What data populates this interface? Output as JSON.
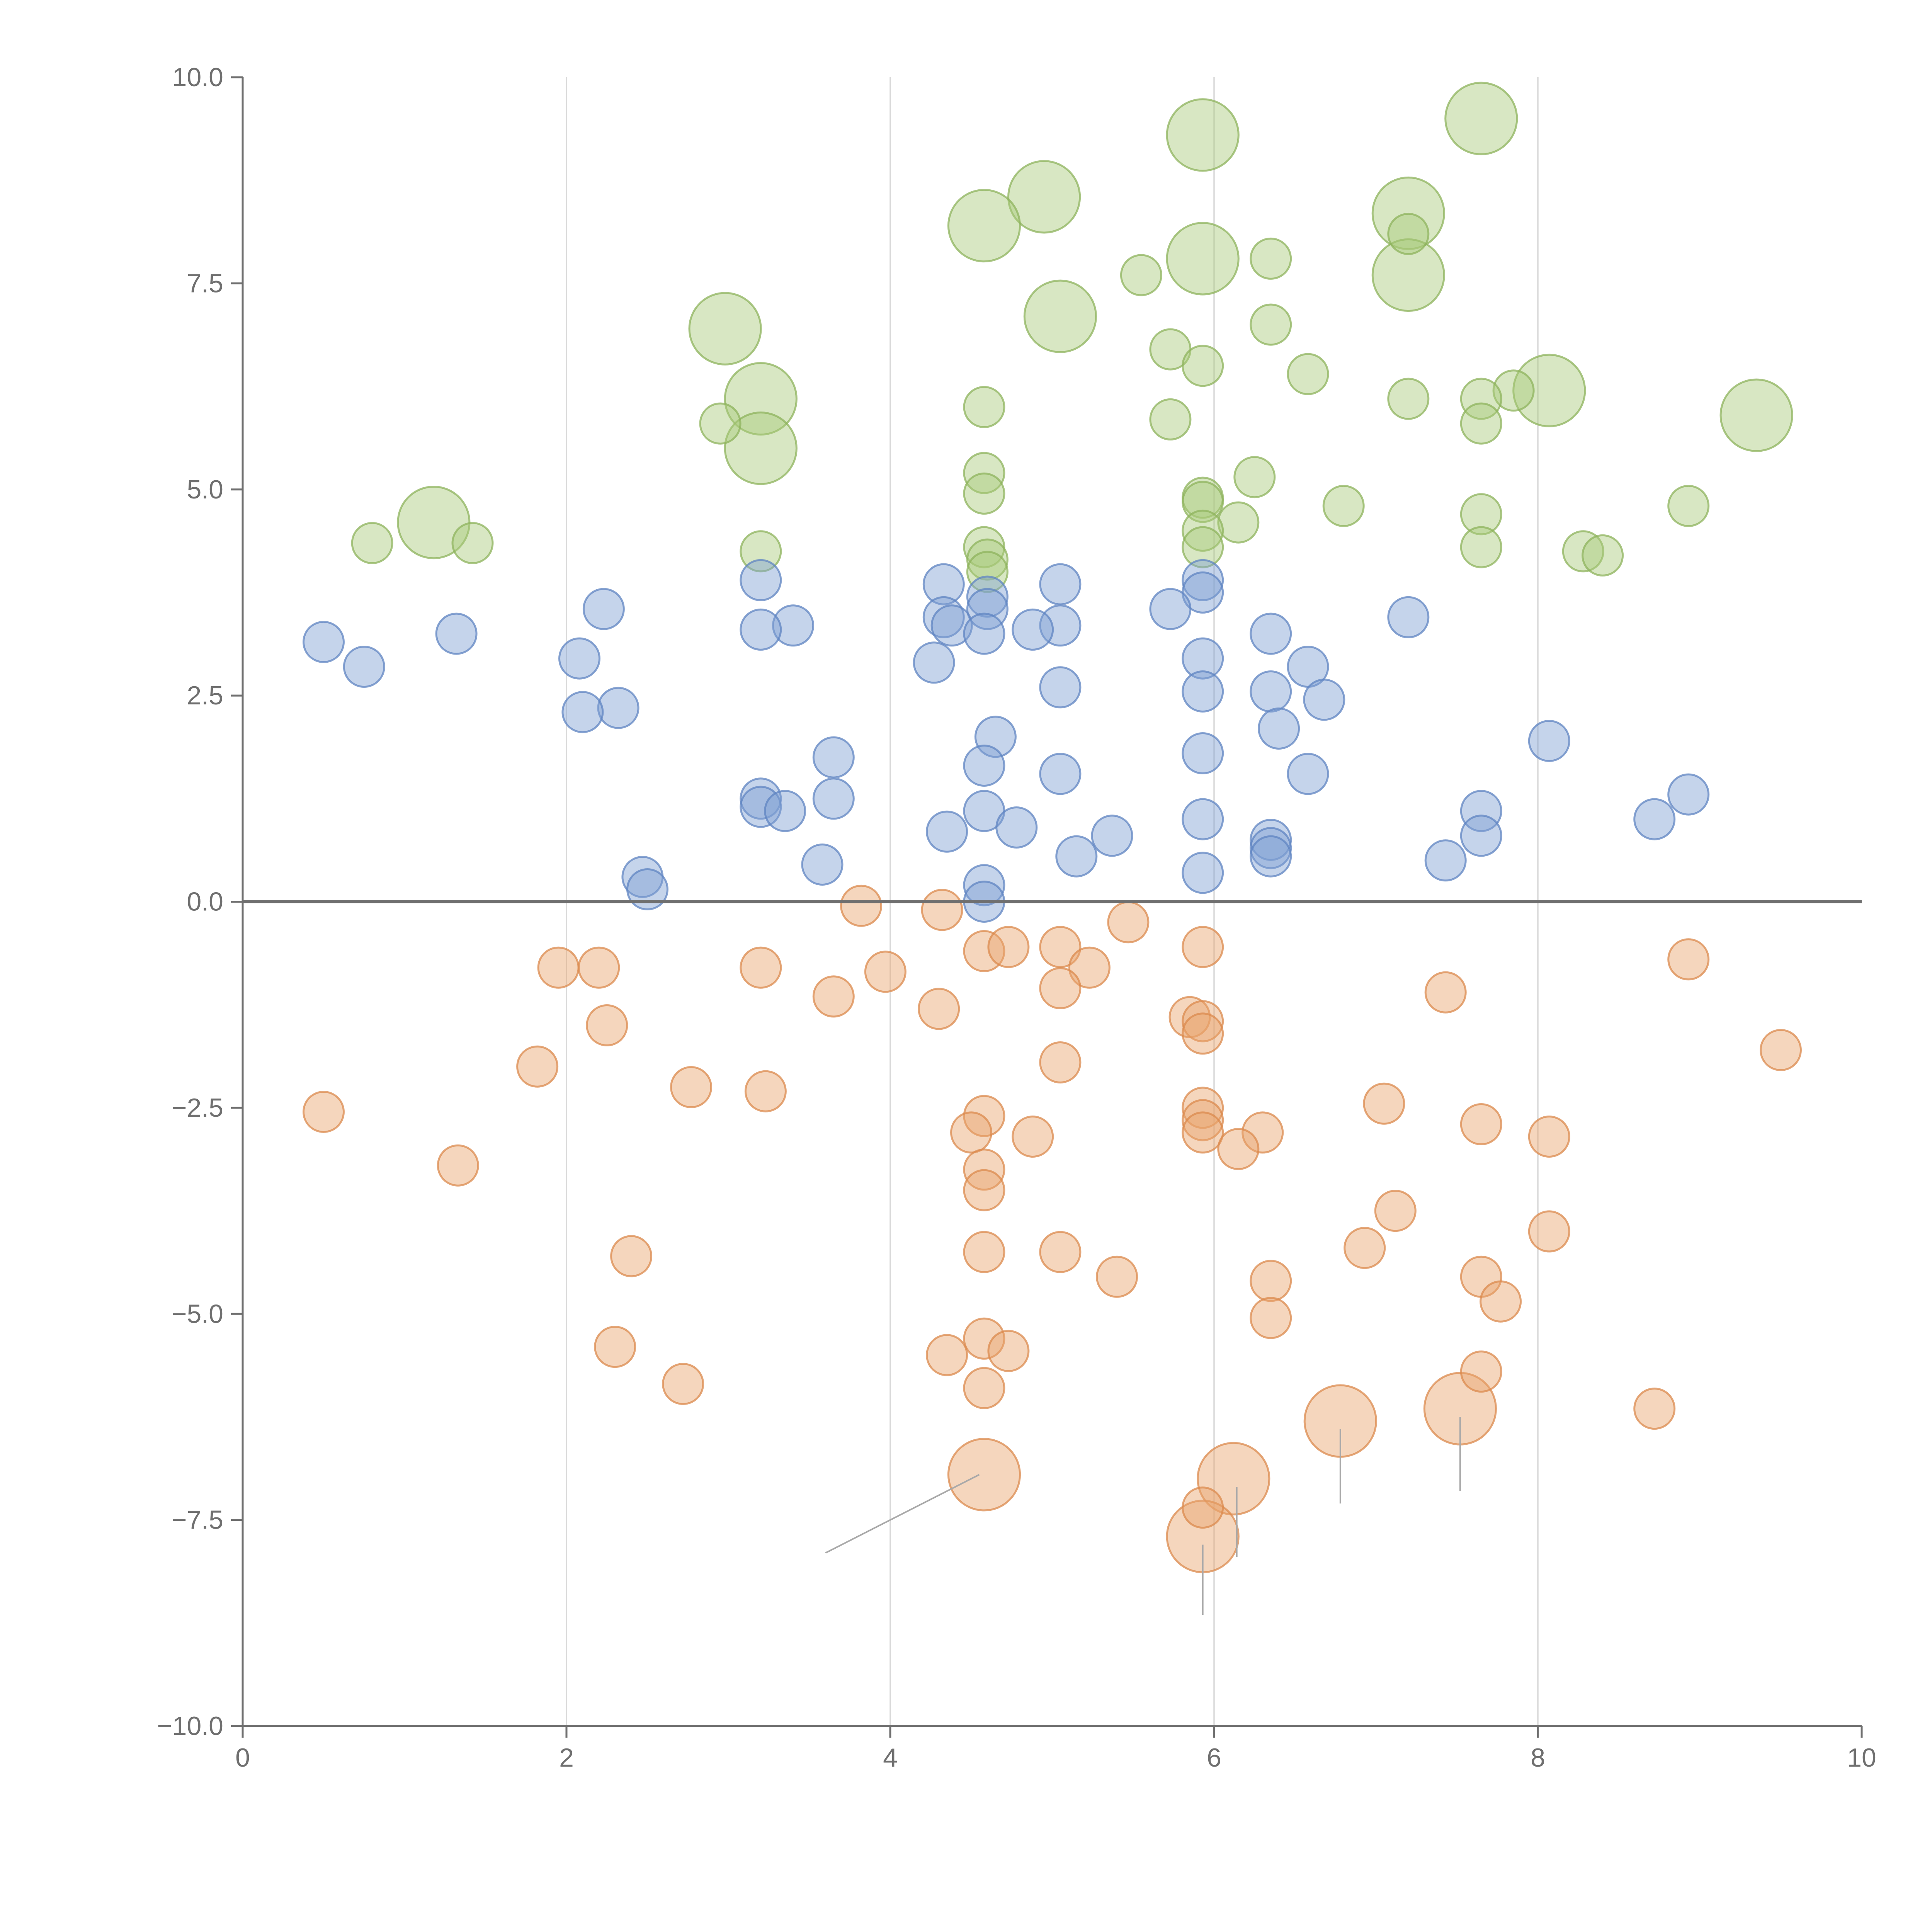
{
  "chart_data": {
    "type": "scatter",
    "title": "",
    "xlabel": "",
    "ylabel": "",
    "xlim": [
      0,
      10
    ],
    "ylim": [
      -10,
      10
    ],
    "x_ticks": [
      0,
      2,
      4,
      6,
      8,
      10
    ],
    "y_ticks": [
      -10,
      -7.5,
      -5,
      -2.5,
      0,
      2.5,
      5,
      7.5,
      10
    ],
    "x_tick_labels": [
      "0",
      "2",
      "4",
      "6",
      "8",
      "10"
    ],
    "y_tick_labels": [
      "−10.0",
      "−7.5",
      "−5.0",
      "−2.5",
      "0.0",
      "2.5",
      "5.0",
      "7.5",
      "10.0"
    ],
    "vertical_gridlines_at": [
      2,
      4,
      6,
      8
    ],
    "horizontal_reference_line": 0,
    "marker_opacity": 0.45,
    "series": [
      {
        "name": "green",
        "color": "#a9c97a",
        "edge_color": "#8db35c",
        "points": [
          [
            7.65,
            9.5,
            1.5
          ],
          [
            5.93,
            9.3,
            1.5
          ],
          [
            4.95,
            8.55,
            1.5
          ],
          [
            4.58,
            8.2,
            1.5
          ],
          [
            7.2,
            8.35,
            1.5
          ],
          [
            7.2,
            8.1,
            0.7
          ],
          [
            5.93,
            7.8,
            1.5
          ],
          [
            7.2,
            7.6,
            1.5
          ],
          [
            6.35,
            7.8,
            0.7
          ],
          [
            5.55,
            7.6,
            0.7
          ],
          [
            5.05,
            7.1,
            1.5
          ],
          [
            6.35,
            7.0,
            0.7
          ],
          [
            2.98,
            6.95,
            1.5
          ],
          [
            5.73,
            6.7,
            0.7
          ],
          [
            5.93,
            6.5,
            0.7
          ],
          [
            6.58,
            6.4,
            0.7
          ],
          [
            3.2,
            6.1,
            1.5
          ],
          [
            8.07,
            6.2,
            1.5
          ],
          [
            7.85,
            6.2,
            0.7
          ],
          [
            7.65,
            6.1,
            0.7
          ],
          [
            7.2,
            6.1,
            0.7
          ],
          [
            4.58,
            6.0,
            0.7
          ],
          [
            9.35,
            5.9,
            1.5
          ],
          [
            2.95,
            5.8,
            0.7
          ],
          [
            5.73,
            5.85,
            0.7
          ],
          [
            7.65,
            5.8,
            0.7
          ],
          [
            3.2,
            5.5,
            1.5
          ],
          [
            4.58,
            5.2,
            0.7
          ],
          [
            6.25,
            5.15,
            0.7
          ],
          [
            4.58,
            4.95,
            0.7
          ],
          [
            5.93,
            4.9,
            0.7
          ],
          [
            5.93,
            4.85,
            0.7
          ],
          [
            6.8,
            4.8,
            0.7
          ],
          [
            8.93,
            4.8,
            0.7
          ],
          [
            7.65,
            4.7,
            0.7
          ],
          [
            6.15,
            4.6,
            0.7
          ],
          [
            1.18,
            4.6,
            1.5
          ],
          [
            5.93,
            4.5,
            0.7
          ],
          [
            0.8,
            4.35,
            0.7
          ],
          [
            1.42,
            4.35,
            0.7
          ],
          [
            3.2,
            4.25,
            0.7
          ],
          [
            4.58,
            4.3,
            0.7
          ],
          [
            5.93,
            4.3,
            0.7
          ],
          [
            7.65,
            4.3,
            0.7
          ],
          [
            8.28,
            4.25,
            0.7
          ],
          [
            8.4,
            4.2,
            0.7
          ],
          [
            4.6,
            4.15,
            0.7
          ],
          [
            4.6,
            4.0,
            0.7
          ]
        ]
      },
      {
        "name": "blue",
        "color": "#7e9fd3",
        "edge_color": "#5f84c1",
        "points": [
          [
            3.2,
            3.9,
            0.7
          ],
          [
            4.33,
            3.85,
            0.7
          ],
          [
            5.05,
            3.85,
            0.7
          ],
          [
            5.93,
            3.9,
            0.7
          ],
          [
            5.93,
            3.75,
            0.7
          ],
          [
            4.6,
            3.7,
            0.7
          ],
          [
            4.6,
            3.55,
            0.7
          ],
          [
            5.73,
            3.55,
            0.7
          ],
          [
            2.23,
            3.55,
            0.7
          ],
          [
            4.33,
            3.45,
            0.7
          ],
          [
            7.2,
            3.45,
            0.7
          ],
          [
            3.4,
            3.35,
            0.7
          ],
          [
            4.38,
            3.35,
            0.7
          ],
          [
            5.05,
            3.35,
            0.7
          ],
          [
            3.2,
            3.3,
            0.7
          ],
          [
            4.88,
            3.3,
            0.7
          ],
          [
            6.35,
            3.25,
            0.7
          ],
          [
            4.58,
            3.25,
            0.7
          ],
          [
            1.32,
            3.25,
            0.7
          ],
          [
            0.5,
            3.15,
            0.7
          ],
          [
            2.08,
            2.95,
            0.7
          ],
          [
            5.93,
            2.95,
            0.7
          ],
          [
            4.27,
            2.9,
            0.7
          ],
          [
            6.58,
            2.85,
            0.7
          ],
          [
            0.75,
            2.85,
            0.7
          ],
          [
            5.05,
            2.6,
            0.7
          ],
          [
            5.93,
            2.55,
            0.7
          ],
          [
            6.35,
            2.55,
            0.7
          ],
          [
            6.68,
            2.45,
            0.7
          ],
          [
            2.32,
            2.35,
            0.7
          ],
          [
            2.1,
            2.3,
            0.7
          ],
          [
            6.4,
            2.1,
            0.7
          ],
          [
            4.65,
            2.0,
            0.7
          ],
          [
            8.07,
            1.95,
            0.7
          ],
          [
            5.93,
            1.8,
            0.7
          ],
          [
            3.65,
            1.75,
            0.7
          ],
          [
            4.58,
            1.65,
            0.7
          ],
          [
            5.05,
            1.55,
            0.7
          ],
          [
            6.58,
            1.55,
            0.7
          ],
          [
            8.93,
            1.3,
            0.7
          ],
          [
            3.2,
            1.25,
            0.7
          ],
          [
            3.65,
            1.25,
            0.7
          ],
          [
            3.2,
            1.15,
            0.7
          ],
          [
            3.35,
            1.1,
            0.7
          ],
          [
            4.58,
            1.1,
            0.7
          ],
          [
            7.65,
            1.1,
            0.7
          ],
          [
            5.93,
            1.0,
            0.7
          ],
          [
            8.72,
            1.0,
            0.7
          ],
          [
            4.78,
            0.9,
            0.7
          ],
          [
            4.35,
            0.85,
            0.7
          ],
          [
            5.37,
            0.8,
            0.7
          ],
          [
            7.65,
            0.8,
            0.7
          ],
          [
            6.35,
            0.75,
            0.7
          ],
          [
            6.35,
            0.65,
            0.7
          ],
          [
            6.35,
            0.55,
            0.7
          ],
          [
            5.15,
            0.55,
            0.7
          ],
          [
            7.43,
            0.5,
            0.7
          ],
          [
            3.58,
            0.45,
            0.7
          ],
          [
            5.93,
            0.35,
            0.7
          ],
          [
            2.47,
            0.3,
            0.7
          ],
          [
            4.58,
            0.2,
            0.7
          ],
          [
            2.5,
            0.15,
            0.7
          ],
          [
            4.58,
            0.0,
            0.7
          ]
        ]
      },
      {
        "name": "orange",
        "color": "#e9a56c",
        "edge_color": "#db8a4d",
        "points": [
          [
            3.82,
            -0.05,
            0.7
          ],
          [
            4.32,
            -0.1,
            0.7
          ],
          [
            5.47,
            -0.25,
            0.7
          ],
          [
            5.93,
            -0.55,
            0.7
          ],
          [
            4.58,
            -0.6,
            0.7
          ],
          [
            4.73,
            -0.55,
            0.7
          ],
          [
            5.05,
            -0.55,
            0.7
          ],
          [
            8.93,
            -0.7,
            0.7
          ],
          [
            1.95,
            -0.8,
            0.7
          ],
          [
            2.2,
            -0.8,
            0.7
          ],
          [
            3.2,
            -0.8,
            0.7
          ],
          [
            5.23,
            -0.8,
            0.7
          ],
          [
            3.97,
            -0.85,
            0.7
          ],
          [
            5.05,
            -1.05,
            0.7
          ],
          [
            7.43,
            -1.1,
            0.7
          ],
          [
            3.65,
            -1.15,
            0.7
          ],
          [
            4.3,
            -1.3,
            0.7
          ],
          [
            5.85,
            -1.4,
            0.7
          ],
          [
            5.93,
            -1.45,
            0.7
          ],
          [
            5.93,
            -1.6,
            0.7
          ],
          [
            2.25,
            -1.5,
            0.7
          ],
          [
            9.5,
            -1.8,
            0.7
          ],
          [
            1.82,
            -2.0,
            0.7
          ],
          [
            5.05,
            -1.95,
            0.7
          ],
          [
            2.77,
            -2.25,
            0.7
          ],
          [
            3.23,
            -2.3,
            0.7
          ],
          [
            0.5,
            -2.55,
            0.7
          ],
          [
            7.05,
            -2.45,
            0.7
          ],
          [
            5.93,
            -2.5,
            0.7
          ],
          [
            4.58,
            -2.6,
            0.7
          ],
          [
            5.93,
            -2.65,
            0.7
          ],
          [
            7.65,
            -2.7,
            0.7
          ],
          [
            4.5,
            -2.8,
            0.7
          ],
          [
            5.93,
            -2.8,
            0.7
          ],
          [
            6.3,
            -2.8,
            0.7
          ],
          [
            8.07,
            -2.85,
            0.7
          ],
          [
            4.88,
            -2.85,
            0.7
          ],
          [
            6.15,
            -3.0,
            0.7
          ],
          [
            1.33,
            -3.2,
            0.7
          ],
          [
            4.58,
            -3.25,
            0.7
          ],
          [
            4.58,
            -3.5,
            0.7
          ],
          [
            7.12,
            -3.75,
            0.7
          ],
          [
            8.07,
            -4.0,
            0.7
          ],
          [
            6.93,
            -4.2,
            0.7
          ],
          [
            2.4,
            -4.3,
            0.7
          ],
          [
            4.58,
            -4.25,
            0.7
          ],
          [
            5.05,
            -4.25,
            0.7
          ],
          [
            5.4,
            -4.55,
            0.7
          ],
          [
            7.65,
            -4.55,
            0.7
          ],
          [
            6.35,
            -4.6,
            0.7
          ],
          [
            7.77,
            -4.85,
            0.7
          ],
          [
            6.35,
            -5.05,
            0.7
          ],
          [
            4.58,
            -5.3,
            0.7
          ],
          [
            2.3,
            -5.4,
            0.7
          ],
          [
            4.73,
            -5.45,
            0.7
          ],
          [
            4.35,
            -5.5,
            0.7
          ],
          [
            7.65,
            -5.7,
            0.7
          ],
          [
            2.72,
            -5.85,
            0.7
          ],
          [
            4.58,
            -5.9,
            0.7
          ],
          [
            8.72,
            -6.15,
            0.7
          ],
          [
            7.52,
            -6.15,
            1.5
          ],
          [
            6.78,
            -6.3,
            1.5
          ],
          [
            4.58,
            -6.95,
            1.5
          ],
          [
            6.12,
            -7.0,
            1.5
          ],
          [
            5.93,
            -7.35,
            0.7
          ],
          [
            5.93,
            -7.7,
            1.5
          ]
        ]
      }
    ],
    "size_legend_note": "marker sizes: 0.7 = small circle, 1.5 = large circle (relative)"
  }
}
